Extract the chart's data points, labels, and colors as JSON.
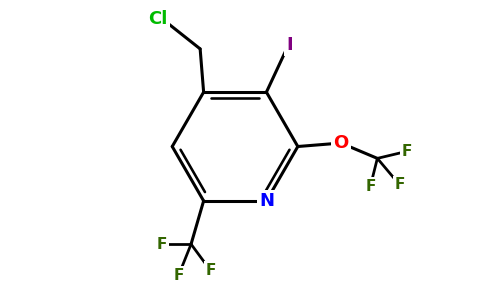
{
  "bg_color": "#ffffff",
  "atom_colors": {
    "Cl": "#00bb00",
    "I": "#800080",
    "O": "#ff0000",
    "N": "#0000ff",
    "F": "#336600",
    "C": "#000000"
  },
  "bond_lw": 2.2,
  "figsize": [
    4.84,
    3.0
  ],
  "dpi": 100,
  "font_size_atom": 13,
  "font_size_F": 11
}
